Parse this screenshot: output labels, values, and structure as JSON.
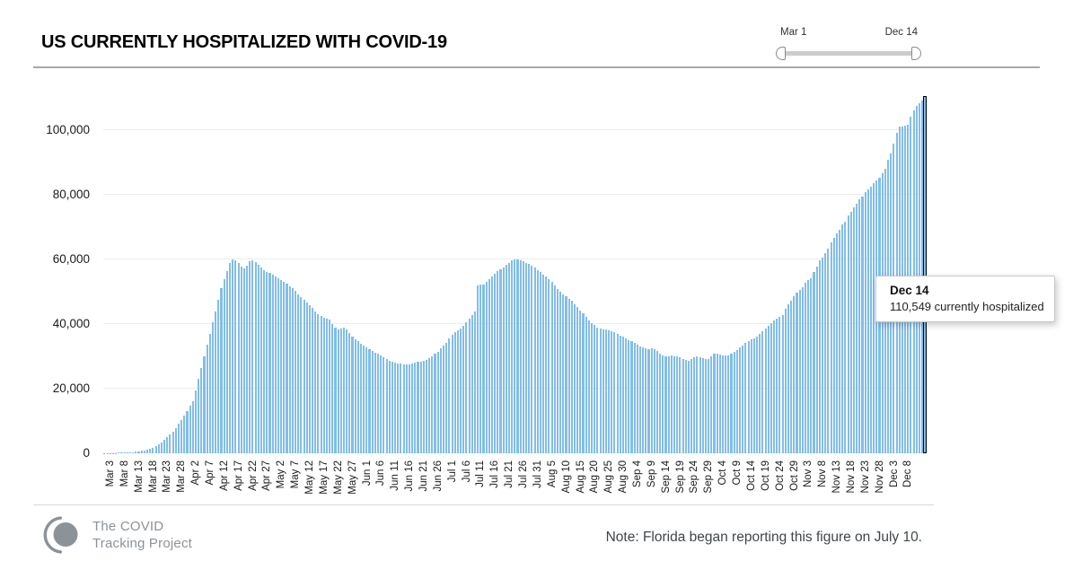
{
  "header": {
    "title": "US CURRENTLY HOSPITALIZED WITH COVID-19"
  },
  "slider": {
    "start_label": "Mar 1",
    "end_label": "Dec 14"
  },
  "tooltip": {
    "title": "Dec 14",
    "text": "110,549 currently hospitalized"
  },
  "footer": {
    "logo_line1": "The COVID",
    "logo_line2": "Tracking Project",
    "note": "Note: Florida began reporting this figure on July 10."
  },
  "colors": {
    "bar": "#82bde9",
    "bar_highlight_border": "#000000",
    "gridline": "#ededed",
    "logo_gray": "#8b9298"
  },
  "chart_data": {
    "type": "bar",
    "title": "US CURRENTLY HOSPITALIZED WITH COVID-19",
    "start_date": "Mar 1",
    "end_date": "Dec 14",
    "grid": true,
    "ylim": [
      0,
      112500
    ],
    "y_ticks": [
      0,
      20000,
      40000,
      60000,
      80000,
      100000
    ],
    "y_tick_labels": [
      "0",
      "20,000",
      "40,000",
      "60,000",
      "80,000",
      "100,000"
    ],
    "x_tick_labels": [
      "Mar 3",
      "Mar 8",
      "Mar 13",
      "Mar 18",
      "Mar 23",
      "Mar 28",
      "Apr 2",
      "Apr 7",
      "Apr 12",
      "Apr 17",
      "Apr 22",
      "Apr 27",
      "May 2",
      "May 7",
      "May 12",
      "May 17",
      "May 22",
      "May 27",
      "Jun 1",
      "Jun 6",
      "Jun 11",
      "Jun 16",
      "Jun 21",
      "Jun 26",
      "Jul 1",
      "Jul 6",
      "Jul 11",
      "Jul 16",
      "Jul 21",
      "Jul 26",
      "Jul 31",
      "Aug 5",
      "Aug 10",
      "Aug 15",
      "Aug 20",
      "Aug 25",
      "Aug 30",
      "Sep 4",
      "Sep 9",
      "Sep 14",
      "Sep 19",
      "Sep 24",
      "Sep 29",
      "Oct 4",
      "Oct 9",
      "Oct 14",
      "Oct 19",
      "Oct 24",
      "Oct 29",
      "Nov 3",
      "Nov 8",
      "Nov 13",
      "Nov 18",
      "Nov 23",
      "Nov 28",
      "Dec 3",
      "Dec 8"
    ],
    "x_tick_first_day_index": 2,
    "x_tick_step_days": 5,
    "highlight": {
      "date": "Dec 14",
      "value": 110549,
      "index": 288
    },
    "values": [
      50,
      60,
      80,
      100,
      120,
      150,
      180,
      220,
      270,
      330,
      400,
      500,
      620,
      760,
      900,
      1100,
      1400,
      1800,
      2300,
      2800,
      3400,
      4100,
      4900,
      5800,
      6800,
      7900,
      9100,
      10400,
      11700,
      13100,
      14600,
      16200,
      19500,
      23000,
      26500,
      30000,
      33500,
      37000,
      40500,
      44000,
      47500,
      51000,
      54000,
      56500,
      59000,
      60000,
      59600,
      58800,
      57800,
      57200,
      58000,
      59400,
      59800,
      59200,
      58300,
      57500,
      56800,
      56200,
      55700,
      55200,
      54800,
      54200,
      53600,
      53000,
      52400,
      51800,
      51000,
      50200,
      49300,
      48400,
      47500,
      46700,
      45900,
      45000,
      44000,
      43000,
      42400,
      42000,
      41800,
      41300,
      40000,
      38900,
      38200,
      38600,
      38900,
      38300,
      37200,
      36200,
      35400,
      34700,
      34000,
      33400,
      32800,
      32200,
      31700,
      31200,
      30700,
      30200,
      29700,
      29200,
      28700,
      28300,
      28000,
      27900,
      27800,
      27600,
      27500,
      27600,
      27800,
      28000,
      28200,
      28400,
      28600,
      28900,
      29400,
      30000,
      30700,
      31500,
      32400,
      33300,
      34300,
      35500,
      36600,
      37400,
      38000,
      38600,
      39400,
      40500,
      41600,
      42700,
      43800,
      52000,
      52100,
      52300,
      53000,
      53800,
      54700,
      55600,
      56400,
      57000,
      57500,
      58200,
      59000,
      59600,
      60000,
      59900,
      59700,
      59400,
      59000,
      58500,
      58000,
      57400,
      56800,
      56100,
      55400,
      54700,
      53900,
      53000,
      51900,
      50800,
      49900,
      49200,
      48600,
      47900,
      47100,
      46200,
      45200,
      44200,
      43200,
      42200,
      41200,
      40300,
      39600,
      39000,
      38600,
      38400,
      38300,
      38100,
      37800,
      37400,
      36900,
      36400,
      36000,
      35600,
      35100,
      34600,
      34100,
      33600,
      33100,
      32700,
      32400,
      32300,
      32500,
      32300,
      31600,
      30900,
      30300,
      29900,
      30100,
      30200,
      30100,
      29900,
      29600,
      29200,
      28900,
      28700,
      29100,
      29600,
      29900,
      29800,
      29500,
      29300,
      29200,
      30100,
      30800,
      30900,
      30600,
      30400,
      30300,
      30400,
      30700,
      31300,
      32000,
      32700,
      33400,
      34100,
      34700,
      35200,
      35600,
      36200,
      37000,
      37900,
      38700,
      39500,
      40400,
      41000,
      41800,
      42200,
      42800,
      44600,
      46000,
      47300,
      48700,
      49600,
      50500,
      51500,
      52800,
      53500,
      54200,
      56000,
      57900,
      59700,
      60600,
      62000,
      63400,
      65200,
      66600,
      68000,
      69300,
      70700,
      71600,
      73500,
      74800,
      76200,
      77100,
      78500,
      79400,
      80800,
      81700,
      82600,
      83500,
      84500,
      85400,
      86800,
      88100,
      90900,
      92700,
      95900,
      99100,
      101000,
      101200,
      101400,
      101700,
      104200,
      106000,
      107400,
      108300,
      109200,
      110549
    ]
  }
}
